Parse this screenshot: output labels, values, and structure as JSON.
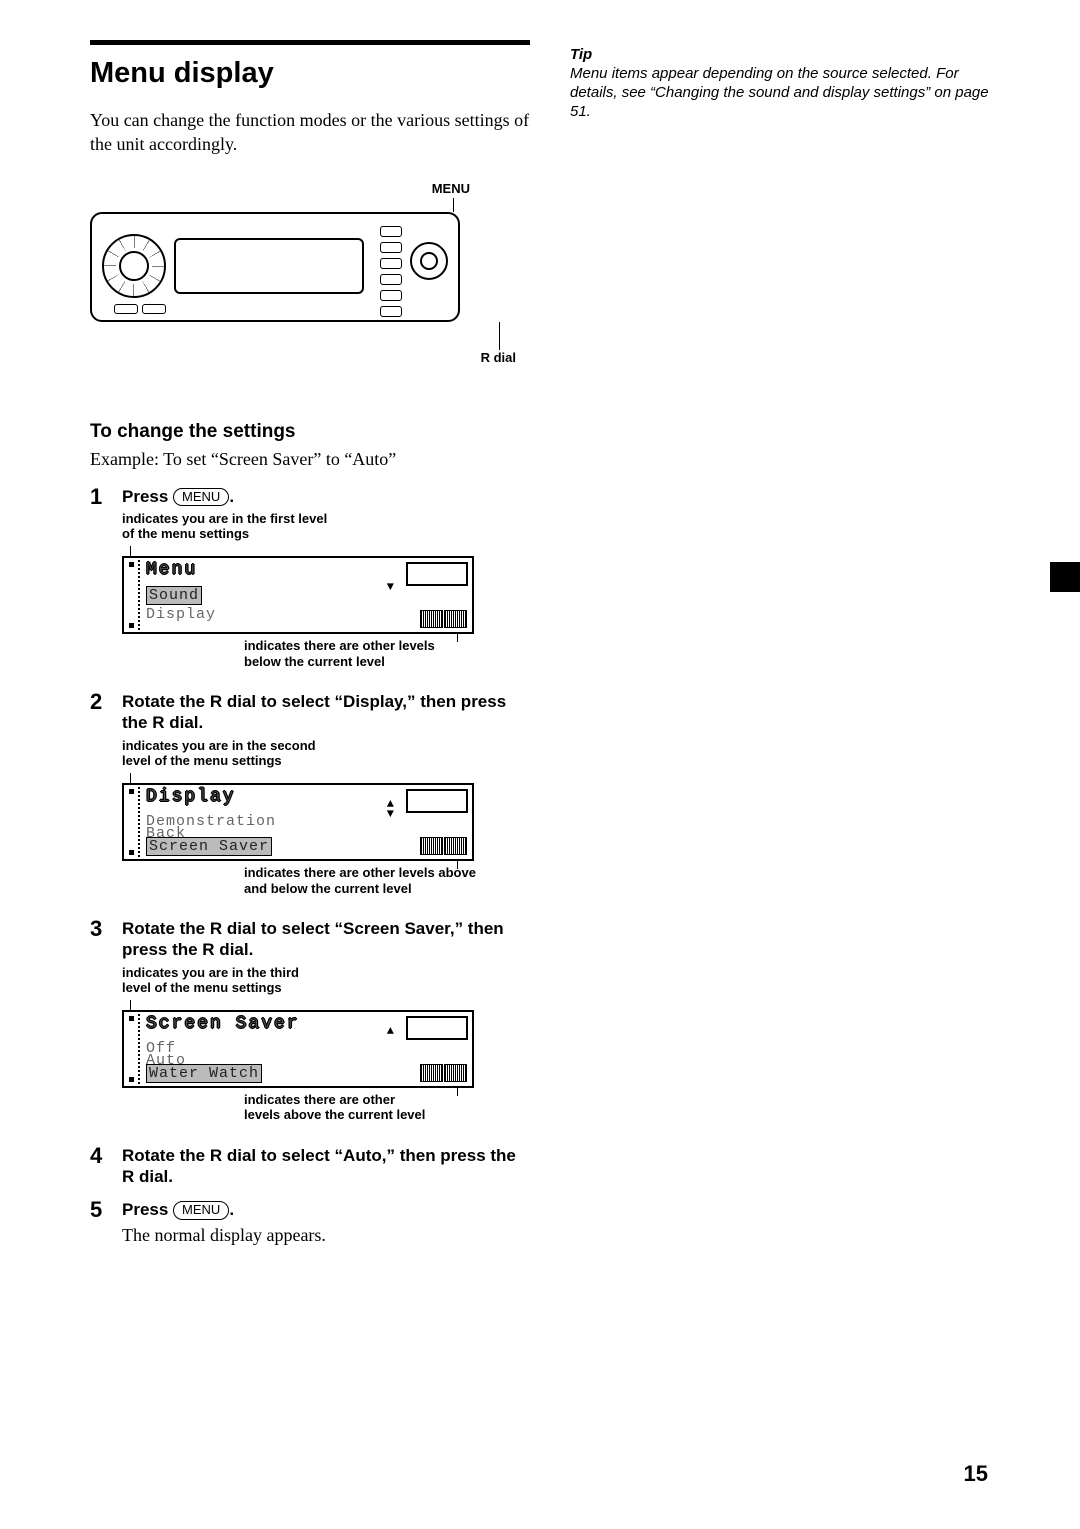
{
  "heading": "Menu display",
  "intro": "You can change the function modes or the various settings of the unit accordingly.",
  "device": {
    "label_top": "MENU",
    "label_bottom": "R dial"
  },
  "section_title": "To change the settings",
  "example": "Example: To set “Screen Saver” to “Auto”",
  "menu_key_label": "MENU",
  "steps": [
    {
      "num": "1",
      "title_prefix": "Press ",
      "has_menu_key": true,
      "title_suffix": ".",
      "caption_top": "indicates you are in the first level\nof the menu settings",
      "lcd": {
        "header": "Menu",
        "row1": "Sound",
        "row2": "Display",
        "highlight_row": 1,
        "arrows": "down"
      },
      "caption_bottom": "indicates there are other levels\nbelow the current level"
    },
    {
      "num": "2",
      "title_plain": "Rotate the R dial to select “Display,” then press the R dial.",
      "caption_top": "indicates you are in the second\nlevel of the menu settings",
      "lcd": {
        "header": "Display",
        "row1": "Demonstration",
        "row2": "Screen Saver",
        "row_extra": "Back",
        "highlight_row": 2,
        "arrows": "both"
      },
      "caption_bottom": "indicates there are other levels above\nand below the current level"
    },
    {
      "num": "3",
      "title_plain": "Rotate the R dial to select “Screen Saver,” then press the R dial.",
      "caption_top": "indicates you are in the third\nlevel of the menu settings",
      "lcd": {
        "header": "Screen Saver",
        "row1": "Off",
        "row2": "Water Watch",
        "row_extra": "Auto",
        "highlight_row": 2,
        "arrows": "up"
      },
      "caption_bottom": "indicates there are other\nlevels above the current level"
    },
    {
      "num": "4",
      "title_plain": "Rotate the R dial to select “Auto,” then press the R dial."
    },
    {
      "num": "5",
      "title_prefix": "Press ",
      "has_menu_key": true,
      "title_suffix": ".",
      "after": "The normal display appears."
    }
  ],
  "tip": {
    "title": "Tip",
    "body": "Menu items appear depending on the source selected. For details, see “Changing the sound and display settings” on page 51."
  },
  "page_number": "15",
  "colors": {
    "text": "#000000",
    "background": "#ffffff",
    "lcd_dim": "#666666",
    "lcd_highlight_bg": "#bbbbbb"
  }
}
